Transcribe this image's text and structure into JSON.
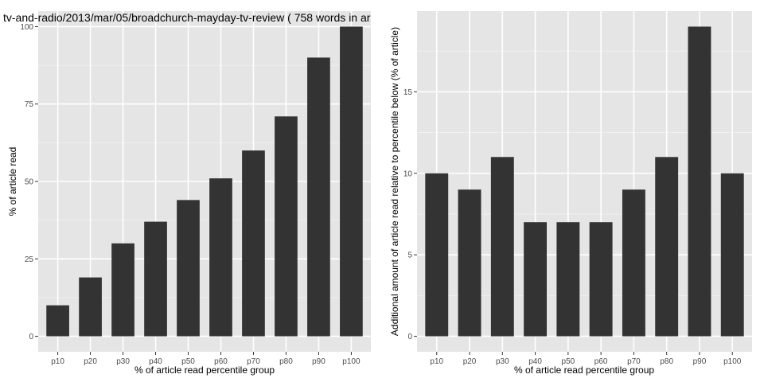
{
  "title": "tv-and-radio/2013/mar/05/broadchurch-mayday-tv-review ( 758 words in ar",
  "colors": {
    "panel_bg": "#e5e5e5",
    "grid_major": "#ffffff",
    "grid_minor": "#f2f2f2",
    "bar": "#333333",
    "tick_text": "#4d4d4d"
  },
  "chart_data": [
    {
      "type": "bar",
      "title": "tv-and-radio/2013/mar/05/broadchurch-mayday-tv-review ( 758 words in ar",
      "xlabel": "% of article read percentile group",
      "ylabel": "% of article read",
      "categories": [
        "p10",
        "p20",
        "p30",
        "p40",
        "p50",
        "p60",
        "p70",
        "p80",
        "p90",
        "p100"
      ],
      "values": [
        10,
        19,
        30,
        37,
        44,
        51,
        60,
        71,
        90,
        100
      ],
      "yticks": [
        0,
        25,
        50,
        75,
        100
      ],
      "ylim": [
        -5,
        105
      ],
      "grid": true,
      "legend": "none"
    },
    {
      "type": "bar",
      "title": "",
      "xlabel": "% of article read percentile group",
      "ylabel": "Additional amount of article read relative to percentile below (% of article)",
      "categories": [
        "p10",
        "p20",
        "p30",
        "p40",
        "p50",
        "p60",
        "p70",
        "p80",
        "p90",
        "p100"
      ],
      "values": [
        10,
        9,
        11,
        7,
        7,
        7,
        9,
        11,
        19,
        10
      ],
      "yticks": [
        0,
        5,
        10,
        15
      ],
      "ylim": [
        -0.95,
        19.95
      ],
      "grid": true,
      "legend": "none"
    }
  ]
}
